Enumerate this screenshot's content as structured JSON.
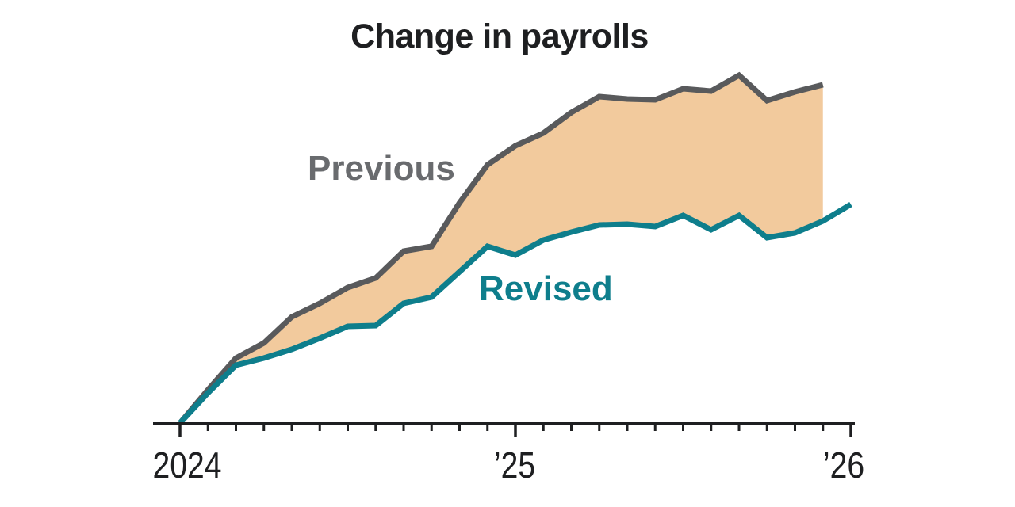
{
  "title": "Change in payrolls",
  "series_labels": {
    "previous": "Previous",
    "revised": "Revised"
  },
  "colors": {
    "title_text": "#1e1f21",
    "axis": "#1e1f21",
    "tick_label": "#1e1f21",
    "previous_line": "#595a5c",
    "previous_label": "#696b6e",
    "revised_line": "#0e7e8c",
    "revised_label": "#0e7e8c",
    "band_fill": "#f2ca9d"
  },
  "x_axis": {
    "labels": [
      "2024",
      "’25",
      "’26"
    ],
    "label_month_index": [
      0,
      12,
      24
    ],
    "major_tick_month_index": [
      0,
      12,
      24
    ],
    "months_total": 25
  },
  "chart_data": {
    "type": "line",
    "title": "Change in payrolls",
    "xlabel": "",
    "ylabel": "",
    "y_units_note": "relative index read from pixels; chart shows no y-axis scale",
    "legend_position": "inline-labels",
    "grid": false,
    "band_fill_between_series": true,
    "x": [
      "2024-01",
      "2024-02",
      "2024-03",
      "2024-04",
      "2024-05",
      "2024-06",
      "2024-07",
      "2024-08",
      "2024-09",
      "2024-10",
      "2024-11",
      "2024-12",
      "2025-01",
      "2025-02",
      "2025-03",
      "2025-04",
      "2025-05",
      "2025-06",
      "2025-07",
      "2025-08",
      "2025-09",
      "2025-10",
      "2025-11",
      "2025-12",
      "2026-01"
    ],
    "ylim": [
      0,
      460
    ],
    "series": [
      {
        "name": "Previous",
        "values": [
          1,
          43,
          83,
          102,
          135,
          152,
          172,
          184,
          218,
          224,
          279,
          327,
          351,
          367,
          393,
          413,
          410,
          409,
          423,
          420,
          440,
          408,
          419,
          428,
          null
        ]
      },
      {
        "name": "Revised",
        "values": [
          1,
          39,
          74,
          83,
          94,
          108,
          123,
          124,
          152,
          160,
          192,
          224,
          213,
          232,
          242,
          251,
          252,
          249,
          263,
          245,
          263,
          235,
          241,
          256,
          277
        ]
      }
    ]
  }
}
